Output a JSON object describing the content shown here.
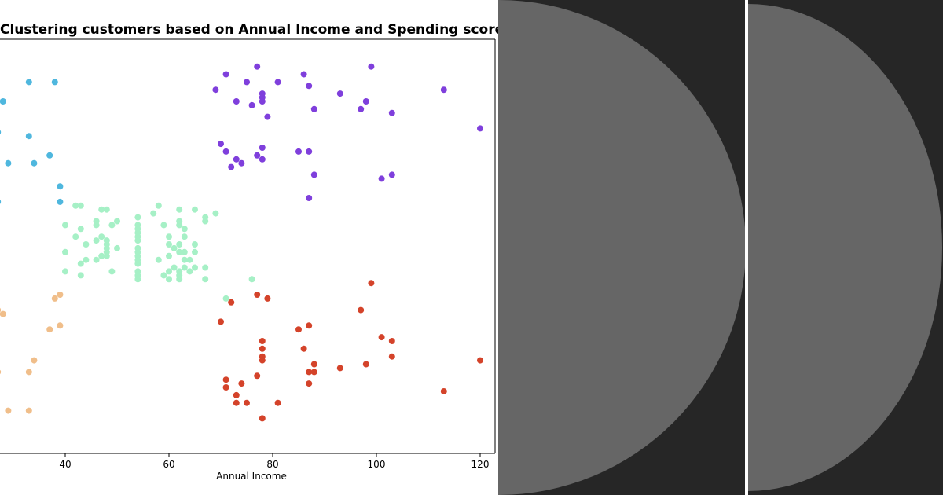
{
  "chart_data": {
    "type": "scatter",
    "title": "Clustering customers based on Annual Income and Spending score",
    "xlabel": "Annual Income",
    "ylabel": "",
    "xlim": [
      27.5,
      122.5
    ],
    "ylim": [
      0,
      100
    ],
    "xticks": [
      40,
      60,
      80,
      100,
      120
    ],
    "grid": false,
    "legend": "none",
    "series": [
      {
        "color": "#4fb7de",
        "points": [
          [
            28,
            87
          ],
          [
            27,
            79
          ],
          [
            33,
            78
          ],
          [
            33,
            92
          ],
          [
            38,
            92
          ],
          [
            37,
            73
          ],
          [
            29,
            71
          ],
          [
            34,
            71
          ],
          [
            39,
            65
          ],
          [
            39,
            61
          ],
          [
            27,
            61
          ]
        ]
      },
      {
        "color": "#7f3fdc",
        "points": [
          [
            71,
            94
          ],
          [
            77,
            96
          ],
          [
            75,
            92
          ],
          [
            69,
            90
          ],
          [
            73,
            87
          ],
          [
            76,
            86
          ],
          [
            78,
            88
          ],
          [
            78,
            89
          ],
          [
            78,
            87
          ],
          [
            81,
            92
          ],
          [
            86,
            94
          ],
          [
            87,
            91
          ],
          [
            88,
            85
          ],
          [
            99,
            96
          ],
          [
            113,
            90
          ],
          [
            93,
            89
          ],
          [
            98,
            87
          ],
          [
            97,
            85
          ],
          [
            103,
            84
          ],
          [
            79,
            83
          ],
          [
            70,
            76
          ],
          [
            71,
            74
          ],
          [
            73,
            72
          ],
          [
            74,
            71
          ],
          [
            72,
            70
          ],
          [
            78,
            75
          ],
          [
            78,
            72
          ],
          [
            77,
            73
          ],
          [
            85,
            74
          ],
          [
            87,
            74
          ],
          [
            88,
            68
          ],
          [
            101,
            67
          ],
          [
            103,
            68
          ],
          [
            120,
            80
          ],
          [
            87,
            62
          ]
        ]
      },
      {
        "color": "#a6f0c6",
        "points": [
          [
            43,
            60
          ],
          [
            42,
            60
          ],
          [
            47,
            59
          ],
          [
            48,
            59
          ],
          [
            58,
            60
          ],
          [
            57,
            58
          ],
          [
            62,
            59
          ],
          [
            65,
            59
          ],
          [
            69,
            58
          ],
          [
            67,
            57
          ],
          [
            67,
            56
          ],
          [
            54,
            57
          ],
          [
            54,
            55
          ],
          [
            54,
            54
          ],
          [
            54,
            53
          ],
          [
            54,
            52
          ],
          [
            54,
            51
          ],
          [
            40,
            55
          ],
          [
            43,
            54
          ],
          [
            46,
            55
          ],
          [
            46,
            56
          ],
          [
            49,
            55
          ],
          [
            50,
            56
          ],
          [
            59,
            55
          ],
          [
            62,
            56
          ],
          [
            62,
            55
          ],
          [
            63,
            54
          ],
          [
            42,
            52
          ],
          [
            47,
            52
          ],
          [
            46,
            51
          ],
          [
            48,
            51
          ],
          [
            48,
            50
          ],
          [
            44,
            50
          ],
          [
            50,
            49
          ],
          [
            60,
            52
          ],
          [
            60,
            50
          ],
          [
            61,
            49
          ],
          [
            62,
            48
          ],
          [
            62,
            50
          ],
          [
            63,
            52
          ],
          [
            65,
            50
          ],
          [
            63,
            48
          ],
          [
            65,
            48
          ],
          [
            40,
            48
          ],
          [
            48,
            49
          ],
          [
            48,
            48
          ],
          [
            47,
            47
          ],
          [
            46,
            46
          ],
          [
            48,
            47
          ],
          [
            44,
            46
          ],
          [
            43,
            45
          ],
          [
            54,
            49
          ],
          [
            54,
            48
          ],
          [
            54,
            47
          ],
          [
            54,
            46
          ],
          [
            54,
            45
          ],
          [
            58,
            46
          ],
          [
            60,
            47
          ],
          [
            63,
            46
          ],
          [
            64,
            46
          ],
          [
            61,
            44
          ],
          [
            62,
            43
          ],
          [
            63,
            44
          ],
          [
            65,
            44
          ],
          [
            67,
            44
          ],
          [
            59,
            42
          ],
          [
            60,
            43
          ],
          [
            62,
            42
          ],
          [
            60,
            41
          ],
          [
            62,
            41
          ],
          [
            64,
            43
          ],
          [
            67,
            41
          ],
          [
            54,
            43
          ],
          [
            54,
            42
          ],
          [
            54,
            41
          ],
          [
            49,
            43
          ],
          [
            40,
            43
          ],
          [
            43,
            42
          ],
          [
            76,
            41
          ],
          [
            71,
            36
          ]
        ]
      },
      {
        "color": "#f0be8a",
        "points": [
          [
            38,
            36
          ],
          [
            39,
            37
          ],
          [
            27,
            33
          ],
          [
            28,
            32
          ],
          [
            39,
            29
          ],
          [
            37,
            28
          ],
          [
            34,
            20
          ],
          [
            27,
            17
          ],
          [
            33,
            17
          ],
          [
            29,
            7
          ],
          [
            33,
            7
          ]
        ]
      },
      {
        "color": "#d4432a",
        "points": [
          [
            77,
            37
          ],
          [
            79,
            36
          ],
          [
            72,
            35
          ],
          [
            99,
            40
          ],
          [
            97,
            33
          ],
          [
            70,
            30
          ],
          [
            85,
            28
          ],
          [
            87,
            29
          ],
          [
            78,
            25
          ],
          [
            78,
            23
          ],
          [
            86,
            23
          ],
          [
            78,
            21
          ],
          [
            78,
            20
          ],
          [
            101,
            26
          ],
          [
            103,
            25
          ],
          [
            103,
            21
          ],
          [
            120,
            20
          ],
          [
            98,
            19
          ],
          [
            88,
            19
          ],
          [
            87,
            17
          ],
          [
            88,
            17
          ],
          [
            93,
            18
          ],
          [
            77,
            16
          ],
          [
            71,
            15
          ],
          [
            71,
            13
          ],
          [
            74,
            14
          ],
          [
            73,
            11
          ],
          [
            73,
            9
          ],
          [
            75,
            9
          ],
          [
            81,
            9
          ],
          [
            87,
            14
          ],
          [
            113,
            12
          ],
          [
            78,
            5
          ]
        ]
      }
    ]
  }
}
